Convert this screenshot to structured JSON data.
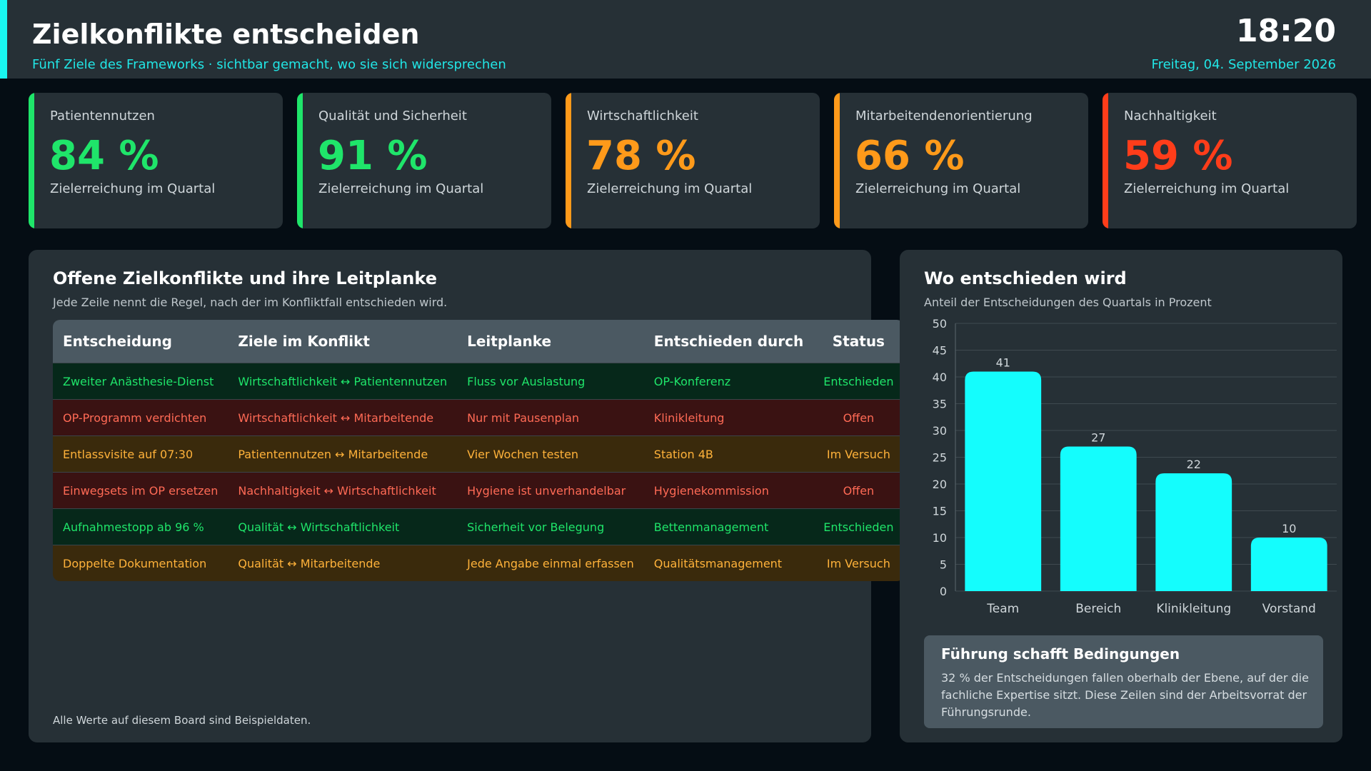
{
  "header": {
    "title": "Zielkonflikte entscheiden",
    "subtitle": "Fünf Ziele des Frameworks · sichtbar gemacht, wo sie sich widersprechen",
    "time": "18:20",
    "date": "Freitag, 04. September 2026"
  },
  "colors": {
    "accent": "#19f7f0",
    "green": "#1fe56a",
    "orange": "#ff9a1a",
    "red": "#ff3d1a",
    "bar": "#14fdfd"
  },
  "kpis": [
    {
      "label": "Patientennutzen",
      "value": "84 %",
      "sub": "Zielerreichung im Quartal",
      "color": "#1fe56a",
      "value_color": "#1fe56a"
    },
    {
      "label": "Qualität und Sicherheit",
      "value": "91 %",
      "sub": "Zielerreichung im Quartal",
      "color": "#1fe56a",
      "value_color": "#1fe56a"
    },
    {
      "label": "Wirtschaftlichkeit",
      "value": "78 %",
      "sub": "Zielerreichung im Quartal",
      "color": "#ff9a1a",
      "value_color": "#ff9a1a"
    },
    {
      "label": "Mitarbeitendenorientierung",
      "value": "66 %",
      "sub": "Zielerreichung im Quartal",
      "color": "#ff9a1a",
      "value_color": "#ff9a1a"
    },
    {
      "label": "Nachhaltigkeit",
      "value": "59 %",
      "sub": "Zielerreichung im Quartal",
      "color": "#ff3d1a",
      "value_color": "#ff3d1a"
    }
  ],
  "conflicts": {
    "title": "Offene Zielkonflikte und ihre Leitplanke",
    "subtitle": "Jede Zeile nennt die Regel, nach der im Konfliktfall entschieden wird.",
    "columns": [
      "Entscheidung",
      "Ziele im Konflikt",
      "Leitplanke",
      "Entschieden durch",
      "Status"
    ],
    "rows": [
      {
        "cells": [
          "Zweiter Anästhesie-Dienst",
          "Wirtschaftlichkeit ↔ Patientennutzen",
          "Fluss vor Auslastung",
          "OP-Konferenz",
          "Entschieden"
        ],
        "status": "green"
      },
      {
        "cells": [
          "OP-Programm verdichten",
          "Wirtschaftlichkeit ↔ Mitarbeitende",
          "Nur mit Pausenplan",
          "Klinikleitung",
          "Offen"
        ],
        "status": "red"
      },
      {
        "cells": [
          "Entlassvisite auf 07:30",
          "Patientennutzen ↔ Mitarbeitende",
          "Vier Wochen testen",
          "Station 4B",
          "Im Versuch"
        ],
        "status": "amber"
      },
      {
        "cells": [
          "Einwegsets im OP ersetzen",
          "Nachhaltigkeit ↔ Wirtschaftlichkeit",
          "Hygiene ist unverhandelbar",
          "Hygienekommission",
          "Offen"
        ],
        "status": "red"
      },
      {
        "cells": [
          "Aufnahmestopp ab 96 %",
          "Qualität ↔ Wirtschaftlichkeit",
          "Sicherheit vor Belegung",
          "Bettenmanagement",
          "Entschieden"
        ],
        "status": "green"
      },
      {
        "cells": [
          "Doppelte Dokumentation",
          "Qualität ↔ Mitarbeitende",
          "Jede Angabe einmal erfassen",
          "Qualitätsmanagement",
          "Im Versuch"
        ],
        "status": "amber"
      }
    ],
    "footnote": "Alle Werte auf diesem Board sind Beispieldaten."
  },
  "decisions": {
    "title": "Wo entschieden wird",
    "subtitle": "Anteil der Entscheidungen des Quartals in Prozent",
    "note_title": "Führung schafft Bedingungen",
    "note_text": "32 % der Entscheidungen fallen oberhalb der Ebene, auf der die fachliche Expertise sitzt. Diese Zeilen sind der Arbeitsvorrat der Führungsrunde."
  },
  "chart_data": {
    "type": "bar",
    "title": "Wo entschieden wird",
    "subtitle": "Anteil der Entscheidungen des Quartals in Prozent",
    "categories": [
      "Team",
      "Bereich",
      "Klinikleitung",
      "Vorstand"
    ],
    "values": [
      41,
      27,
      22,
      10
    ],
    "ylim": [
      0,
      50
    ],
    "yticks": [
      0,
      5,
      10,
      15,
      20,
      25,
      30,
      35,
      40,
      45,
      50
    ],
    "grid": true,
    "data_labels": true
  }
}
